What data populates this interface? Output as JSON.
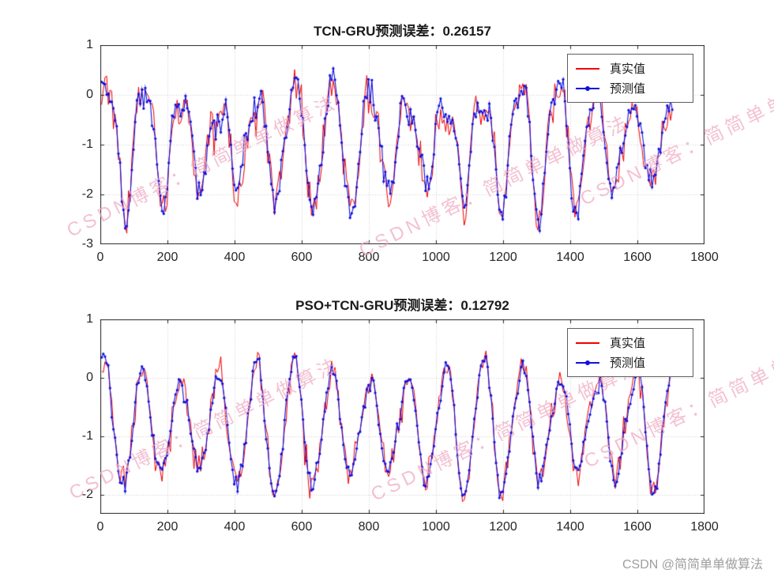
{
  "page": {
    "background": "#ffffff",
    "credit": "CSDN @简简单单做算法",
    "watermark_text": "CSDN博客：简简单单做算法",
    "watermark_color": "#efa9c3"
  },
  "chart_data": [
    {
      "type": "line",
      "title": "TCN-GRU预测误差：0.26157",
      "model": "TCN-GRU",
      "error_value": 0.26157,
      "xlabel": "",
      "ylabel": "",
      "xlim": [
        0,
        1800
      ],
      "ylim": [
        -3,
        1
      ],
      "xticks": [
        0,
        200,
        400,
        600,
        800,
        1000,
        1200,
        1400,
        1600,
        1800
      ],
      "yticks": [
        1,
        0,
        -1,
        -2,
        -3
      ],
      "grid": true,
      "grid_style": "dotted",
      "axis_color": "#262626",
      "legend": {
        "position": "top-right",
        "entries": [
          {
            "label": "真实值",
            "color": "#f00000",
            "marker": "none"
          },
          {
            "label": "预测值",
            "color": "#1010e0",
            "marker": "dot"
          }
        ]
      },
      "series": [
        {
          "name": "真实值",
          "role": "true",
          "color": "#f00000",
          "line_width": 1,
          "marker": "none"
        },
        {
          "name": "预测值",
          "role": "pred",
          "color": "#1010e0",
          "line_width": 1.1,
          "marker": "dot",
          "marker_radius": 1.6
        }
      ],
      "synthesis": {
        "x_start": 4,
        "x_end": 1704,
        "x_step": 5,
        "period_main": 112,
        "phase": 0.5,
        "period_mod": 640,
        "mod_phase": 1.2,
        "mod_depth": 0.3,
        "period_ripple": 53,
        "ripple_amp": 0.18,
        "ripple_phase": 1.3,
        "offset": -0.78,
        "amp": 1.05,
        "sharpen": 0.35,
        "noise_true": 0.2,
        "noise_pred": 0.13,
        "clamp": [
          -2.78,
          0.58
        ],
        "seed": 20230407
      }
    },
    {
      "type": "line",
      "title": "PSO+TCN-GRU预测误差：0.12792",
      "model": "PSO+TCN-GRU",
      "error_value": 0.12792,
      "xlabel": "",
      "ylabel": "",
      "xlim": [
        0,
        1800
      ],
      "ylim": [
        -2.33,
        1
      ],
      "xticks": [
        0,
        200,
        400,
        600,
        800,
        1000,
        1200,
        1400,
        1600,
        1800
      ],
      "yticks": [
        1,
        0,
        -1,
        -2
      ],
      "grid": true,
      "grid_style": "dotted",
      "axis_color": "#262626",
      "legend": {
        "position": "top-right",
        "entries": [
          {
            "label": "真实值",
            "color": "#f00000",
            "marker": "none"
          },
          {
            "label": "预测值",
            "color": "#1010e0",
            "marker": "dot"
          }
        ]
      },
      "series": [
        {
          "name": "真实值",
          "role": "true",
          "color": "#f00000",
          "line_width": 1,
          "marker": "none"
        },
        {
          "name": "预测值",
          "role": "pred",
          "color": "#1010e0",
          "line_width": 1.1,
          "marker": "dot",
          "marker_radius": 1.6
        }
      ],
      "synthesis": {
        "x_start": 4,
        "x_end": 1704,
        "x_step": 5,
        "period_main": 113,
        "phase": 0.9,
        "period_mod": 590,
        "mod_phase": 2.1,
        "mod_depth": 0.24,
        "period_ripple": 57,
        "ripple_amp": 0.15,
        "ripple_phase": 0.4,
        "offset": -0.72,
        "amp": 0.95,
        "sharpen": 0.22,
        "noise_true": 0.13,
        "noise_pred": 0.07,
        "clamp": [
          -2.12,
          0.55
        ],
        "seed": 991133
      }
    }
  ]
}
